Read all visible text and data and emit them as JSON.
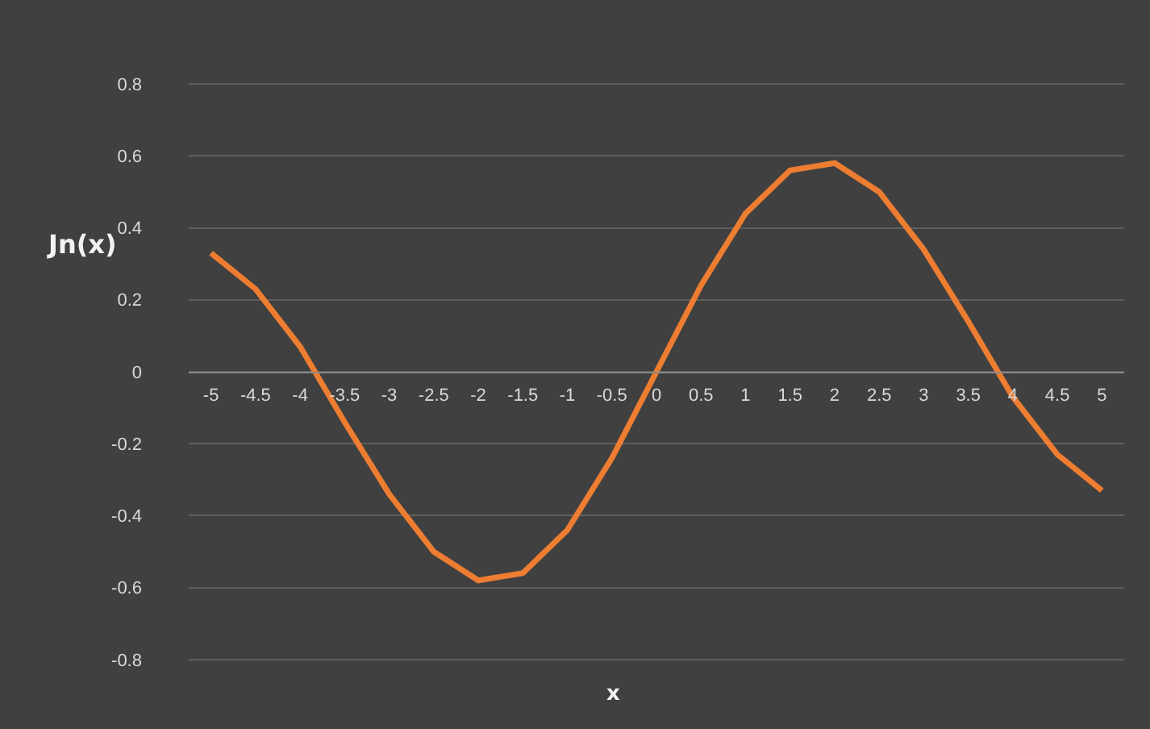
{
  "chart_data": {
    "type": "line",
    "ylabel": "Jn(x)",
    "xlabel": "x",
    "categories": [
      "-5",
      "-4.5",
      "-4",
      "-3.5",
      "-3",
      "-2.5",
      "-2",
      "-1.5",
      "-1",
      "-0.5",
      "0",
      "0.5",
      "1",
      "1.5",
      "2",
      "2.5",
      "3",
      "3.5",
      "4",
      "4.5",
      "5"
    ],
    "series": [
      {
        "color": "#ed7d31",
        "values": [
          0.33,
          0.23,
          0.07,
          -0.14,
          -0.34,
          -0.5,
          -0.58,
          -0.56,
          -0.44,
          -0.24,
          0,
          0.24,
          0.44,
          0.56,
          0.58,
          0.5,
          0.34,
          0.14,
          -0.07,
          -0.23,
          -0.33
        ]
      }
    ],
    "ylim": [
      -0.8,
      0.8
    ],
    "yticks": [
      -0.8,
      -0.6,
      -0.4,
      -0.2,
      0,
      0.2,
      0.4,
      0.6,
      0.8
    ],
    "grid": "y",
    "marker": "none",
    "line_style": "solid"
  }
}
